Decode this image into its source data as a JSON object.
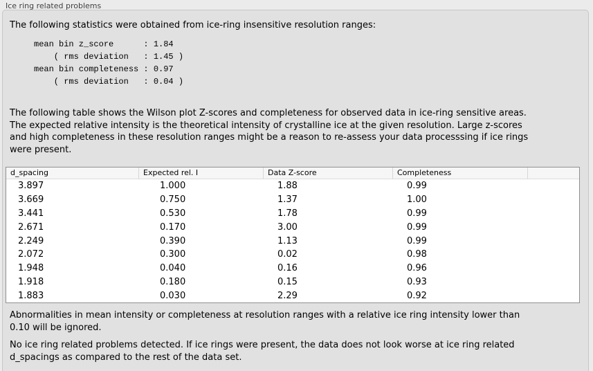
{
  "panel": {
    "title": "Ice ring related problems",
    "intro": "The following statistics were obtained from ice-ring insensitive resolution ranges:",
    "stats_block": "mean bin z_score      : 1.84\n    ( rms deviation   : 1.45 )\nmean bin completeness : 0.97\n    ( rms deviation   : 0.04 )",
    "stats": {
      "mean_bin_z_score": "1.84",
      "z_score_rms_deviation": "1.45",
      "mean_bin_completeness": "0.97",
      "completeness_rms_deviation": "0.04"
    },
    "table_description": "The following table shows the Wilson plot Z-scores and completeness for observed data in ice-ring sensitive areas.\nThe expected relative intensity is the theoretical intensity of crystalline ice at the given resolution. Large z-scores\nand high completeness in these resolution ranges might be a reason to re-assess your data processsing if ice rings\nwere present.",
    "table": {
      "columns": [
        "d_spacing",
        "Expected rel. I",
        "Data Z-score",
        "Completeness"
      ],
      "rows": [
        [
          "3.897",
          "1.000",
          "1.88",
          "0.99"
        ],
        [
          "3.669",
          "0.750",
          "1.37",
          "1.00"
        ],
        [
          "3.441",
          "0.530",
          "1.78",
          "0.99"
        ],
        [
          "2.671",
          "0.170",
          "3.00",
          "0.99"
        ],
        [
          "2.249",
          "0.390",
          "1.13",
          "0.99"
        ],
        [
          "2.072",
          "0.300",
          "0.02",
          "0.98"
        ],
        [
          "1.948",
          "0.040",
          "0.16",
          "0.96"
        ],
        [
          "1.918",
          "0.180",
          "0.15",
          "0.93"
        ],
        [
          "1.883",
          "0.030",
          "2.29",
          "0.92"
        ]
      ]
    },
    "note": "Abnormalities in mean intensity or completeness at resolution ranges with a relative ice ring intensity lower than\n0.10 will be ignored.",
    "conclusion": "No ice ring related problems detected. If ice rings were present, the data does not look worse at ice ring related\nd_spacings as compared to the rest of the data set."
  },
  "colors": {
    "page_background": "#ebebeb",
    "panel_background": "#e1e1e1",
    "panel_border": "#c6c6c6",
    "table_background": "#ffffff",
    "table_border": "#8f8f8f",
    "header_background": "#f6f6f6",
    "text": "#000000",
    "title_text": "#3f3f3f"
  }
}
